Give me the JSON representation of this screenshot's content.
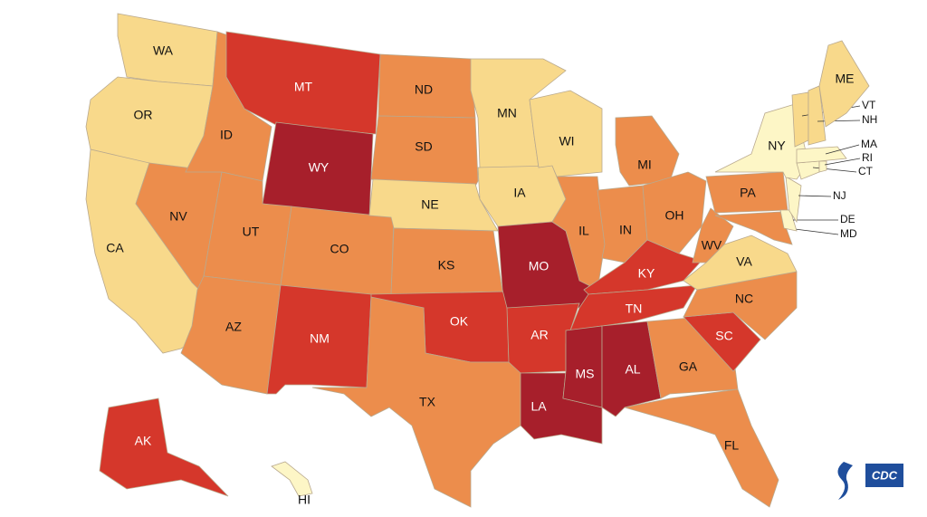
{
  "map": {
    "states": [
      {
        "label": "WA",
        "color": "#f8d98b"
      },
      {
        "label": "OR",
        "color": "#f8d98b"
      },
      {
        "label": "CA",
        "color": "#f8d98b"
      },
      {
        "label": "NV",
        "color": "#ec8d4c"
      },
      {
        "label": "ID",
        "color": "#ec8d4c"
      },
      {
        "label": "MT",
        "color": "#d5372b"
      },
      {
        "label": "WY",
        "color": "#a71f2b"
      },
      {
        "label": "UT",
        "color": "#ec8d4c"
      },
      {
        "label": "CO",
        "color": "#ec8d4c"
      },
      {
        "label": "AZ",
        "color": "#ec8d4c"
      },
      {
        "label": "NM",
        "color": "#d5372b"
      },
      {
        "label": "ND",
        "color": "#ec8d4c"
      },
      {
        "label": "SD",
        "color": "#ec8d4c"
      },
      {
        "label": "NE",
        "color": "#f8d98b"
      },
      {
        "label": "KS",
        "color": "#ec8d4c"
      },
      {
        "label": "OK",
        "color": "#d5372b"
      },
      {
        "label": "TX",
        "color": "#ec8d4c"
      },
      {
        "label": "MN",
        "color": "#f8d98b"
      },
      {
        "label": "IA",
        "color": "#f8d98b"
      },
      {
        "label": "MO",
        "color": "#a71f2b"
      },
      {
        "label": "AR",
        "color": "#d5372b"
      },
      {
        "label": "LA",
        "color": "#a71f2b"
      },
      {
        "label": "WI",
        "color": "#f8d98b"
      },
      {
        "label": "IL",
        "color": "#ec8d4c"
      },
      {
        "label": "IN",
        "color": "#ec8d4c"
      },
      {
        "label": "MI",
        "color": "#ec8d4c"
      },
      {
        "label": "OH",
        "color": "#ec8d4c"
      },
      {
        "label": "KY",
        "color": "#d5372b"
      },
      {
        "label": "TN",
        "color": "#d5372b"
      },
      {
        "label": "MS",
        "color": "#a71f2b"
      },
      {
        "label": "AL",
        "color": "#a71f2b"
      },
      {
        "label": "GA",
        "color": "#ec8d4c"
      },
      {
        "label": "FL",
        "color": "#ec8d4c"
      },
      {
        "label": "SC",
        "color": "#d5372b"
      },
      {
        "label": "NC",
        "color": "#ec8d4c"
      },
      {
        "label": "VA",
        "color": "#f8d98b"
      },
      {
        "label": "WV",
        "color": "#ec8d4c"
      },
      {
        "label": "PA",
        "color": "#ec8d4c"
      },
      {
        "label": "MD",
        "color": "#ec8d4c"
      },
      {
        "label": "DE",
        "color": "#fdf6c6"
      },
      {
        "label": "NJ",
        "color": "#fdf6c6"
      },
      {
        "label": "NY",
        "color": "#fdf6c6"
      },
      {
        "label": "CT",
        "color": "#fdf6c6"
      },
      {
        "label": "RI",
        "color": "#fdf6c6"
      },
      {
        "label": "MA",
        "color": "#fdf6c6"
      },
      {
        "label": "VT",
        "color": "#f8d98b"
      },
      {
        "label": "NH",
        "color": "#f8d98b"
      },
      {
        "label": "ME",
        "color": "#f8d98b"
      },
      {
        "label": "AK",
        "color": "#d5372b"
      },
      {
        "label": "HI",
        "color": "#fdf6c6"
      }
    ]
  },
  "logo": "CDC"
}
